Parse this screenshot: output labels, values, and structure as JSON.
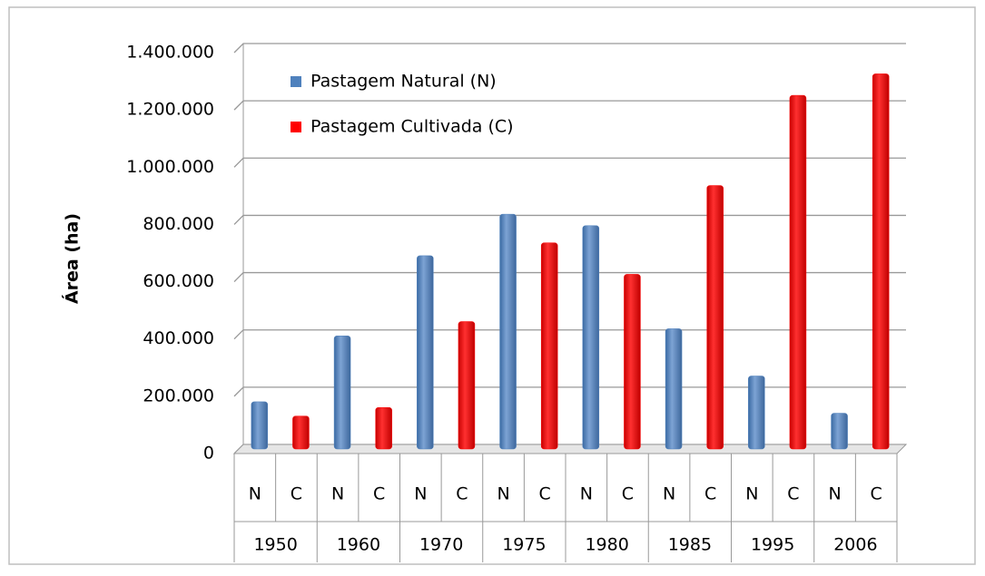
{
  "chart_data": {
    "type": "bar",
    "y_axis_label": "Área (ha)",
    "categories": [
      "1950",
      "1960",
      "1970",
      "1975",
      "1980",
      "1985",
      "1995",
      "2006"
    ],
    "subcategories": [
      "N",
      "C"
    ],
    "series": [
      {
        "name": "Pastagem Natural (N)",
        "color": "#4f81bd",
        "values": [
          165000,
          395000,
          675000,
          820000,
          780000,
          420000,
          255000,
          125000
        ]
      },
      {
        "name": "Pastagem Cultivada (C)",
        "color": "#ff0000",
        "values": [
          115000,
          145000,
          445000,
          720000,
          610000,
          920000,
          1235000,
          1310000
        ]
      }
    ],
    "ylim": [
      0,
      1400000
    ],
    "yticks": [
      0,
      {
        "value": 200000,
        "label": "200.000"
      },
      {
        "value": 400000,
        "label": "400.000"
      },
      {
        "value": 600000,
        "label": "600.000"
      },
      {
        "value": 800000,
        "label": "800.000"
      },
      {
        "value": 1000000,
        "label": "1.000.000"
      },
      {
        "value": 1200000,
        "label": "1.200.000"
      },
      {
        "value": 1400000,
        "label": "1.400.000"
      }
    ],
    "grid": true,
    "legend": "top-left"
  }
}
